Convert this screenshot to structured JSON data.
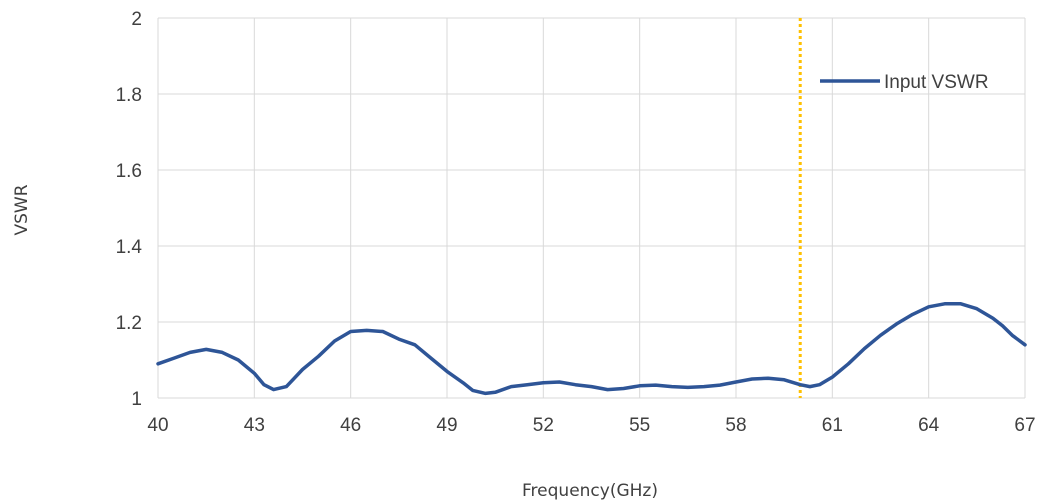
{
  "chart_data": {
    "type": "line",
    "title": "",
    "xlabel": "Frequency(GHz)",
    "ylabel": "VSWR",
    "xlim": [
      40,
      67
    ],
    "ylim": [
      1,
      2
    ],
    "x_ticks": [
      40,
      43,
      46,
      49,
      52,
      55,
      58,
      61,
      64,
      67
    ],
    "y_ticks": [
      1,
      1.2,
      1.4,
      1.6,
      1.8,
      2
    ],
    "x_tick_labels": [
      "40",
      "43",
      "46",
      "49",
      "52",
      "55",
      "58",
      "61",
      "64",
      "67"
    ],
    "y_tick_labels": [
      "1",
      "1.2",
      "1.4",
      "1.6",
      "1.8",
      "2"
    ],
    "grid": "vertical and horizontal",
    "legend_position": "top-right",
    "series": [
      {
        "name": "Input VSWR",
        "color": "#2e5597",
        "x": [
          40,
          40.5,
          41,
          41.5,
          42,
          42.5,
          43,
          43.3,
          43.6,
          44,
          44.5,
          45,
          45.5,
          46,
          46.5,
          47,
          47.5,
          48,
          48.5,
          49,
          49.5,
          49.8,
          50.2,
          50.5,
          51,
          51.5,
          52,
          52.5,
          53,
          53.5,
          54,
          54.5,
          55,
          55.5,
          56,
          56.5,
          57,
          57.5,
          58,
          58.5,
          59,
          59.5,
          60,
          60.3,
          60.6,
          61,
          61.5,
          62,
          62.5,
          63,
          63.5,
          64,
          64.5,
          65,
          65.5,
          66,
          66.3,
          66.6,
          67
        ],
        "y": [
          1.09,
          1.105,
          1.12,
          1.128,
          1.12,
          1.1,
          1.065,
          1.035,
          1.022,
          1.03,
          1.075,
          1.11,
          1.15,
          1.175,
          1.178,
          1.175,
          1.155,
          1.14,
          1.105,
          1.07,
          1.04,
          1.02,
          1.012,
          1.015,
          1.03,
          1.035,
          1.04,
          1.042,
          1.035,
          1.03,
          1.022,
          1.025,
          1.032,
          1.034,
          1.03,
          1.028,
          1.03,
          1.034,
          1.042,
          1.05,
          1.052,
          1.048,
          1.035,
          1.03,
          1.035,
          1.055,
          1.09,
          1.13,
          1.165,
          1.195,
          1.22,
          1.24,
          1.248,
          1.248,
          1.235,
          1.21,
          1.19,
          1.165,
          1.14
        ]
      }
    ],
    "reference_line": {
      "x": 60,
      "color": "#ffc000",
      "style": "dotted"
    }
  }
}
